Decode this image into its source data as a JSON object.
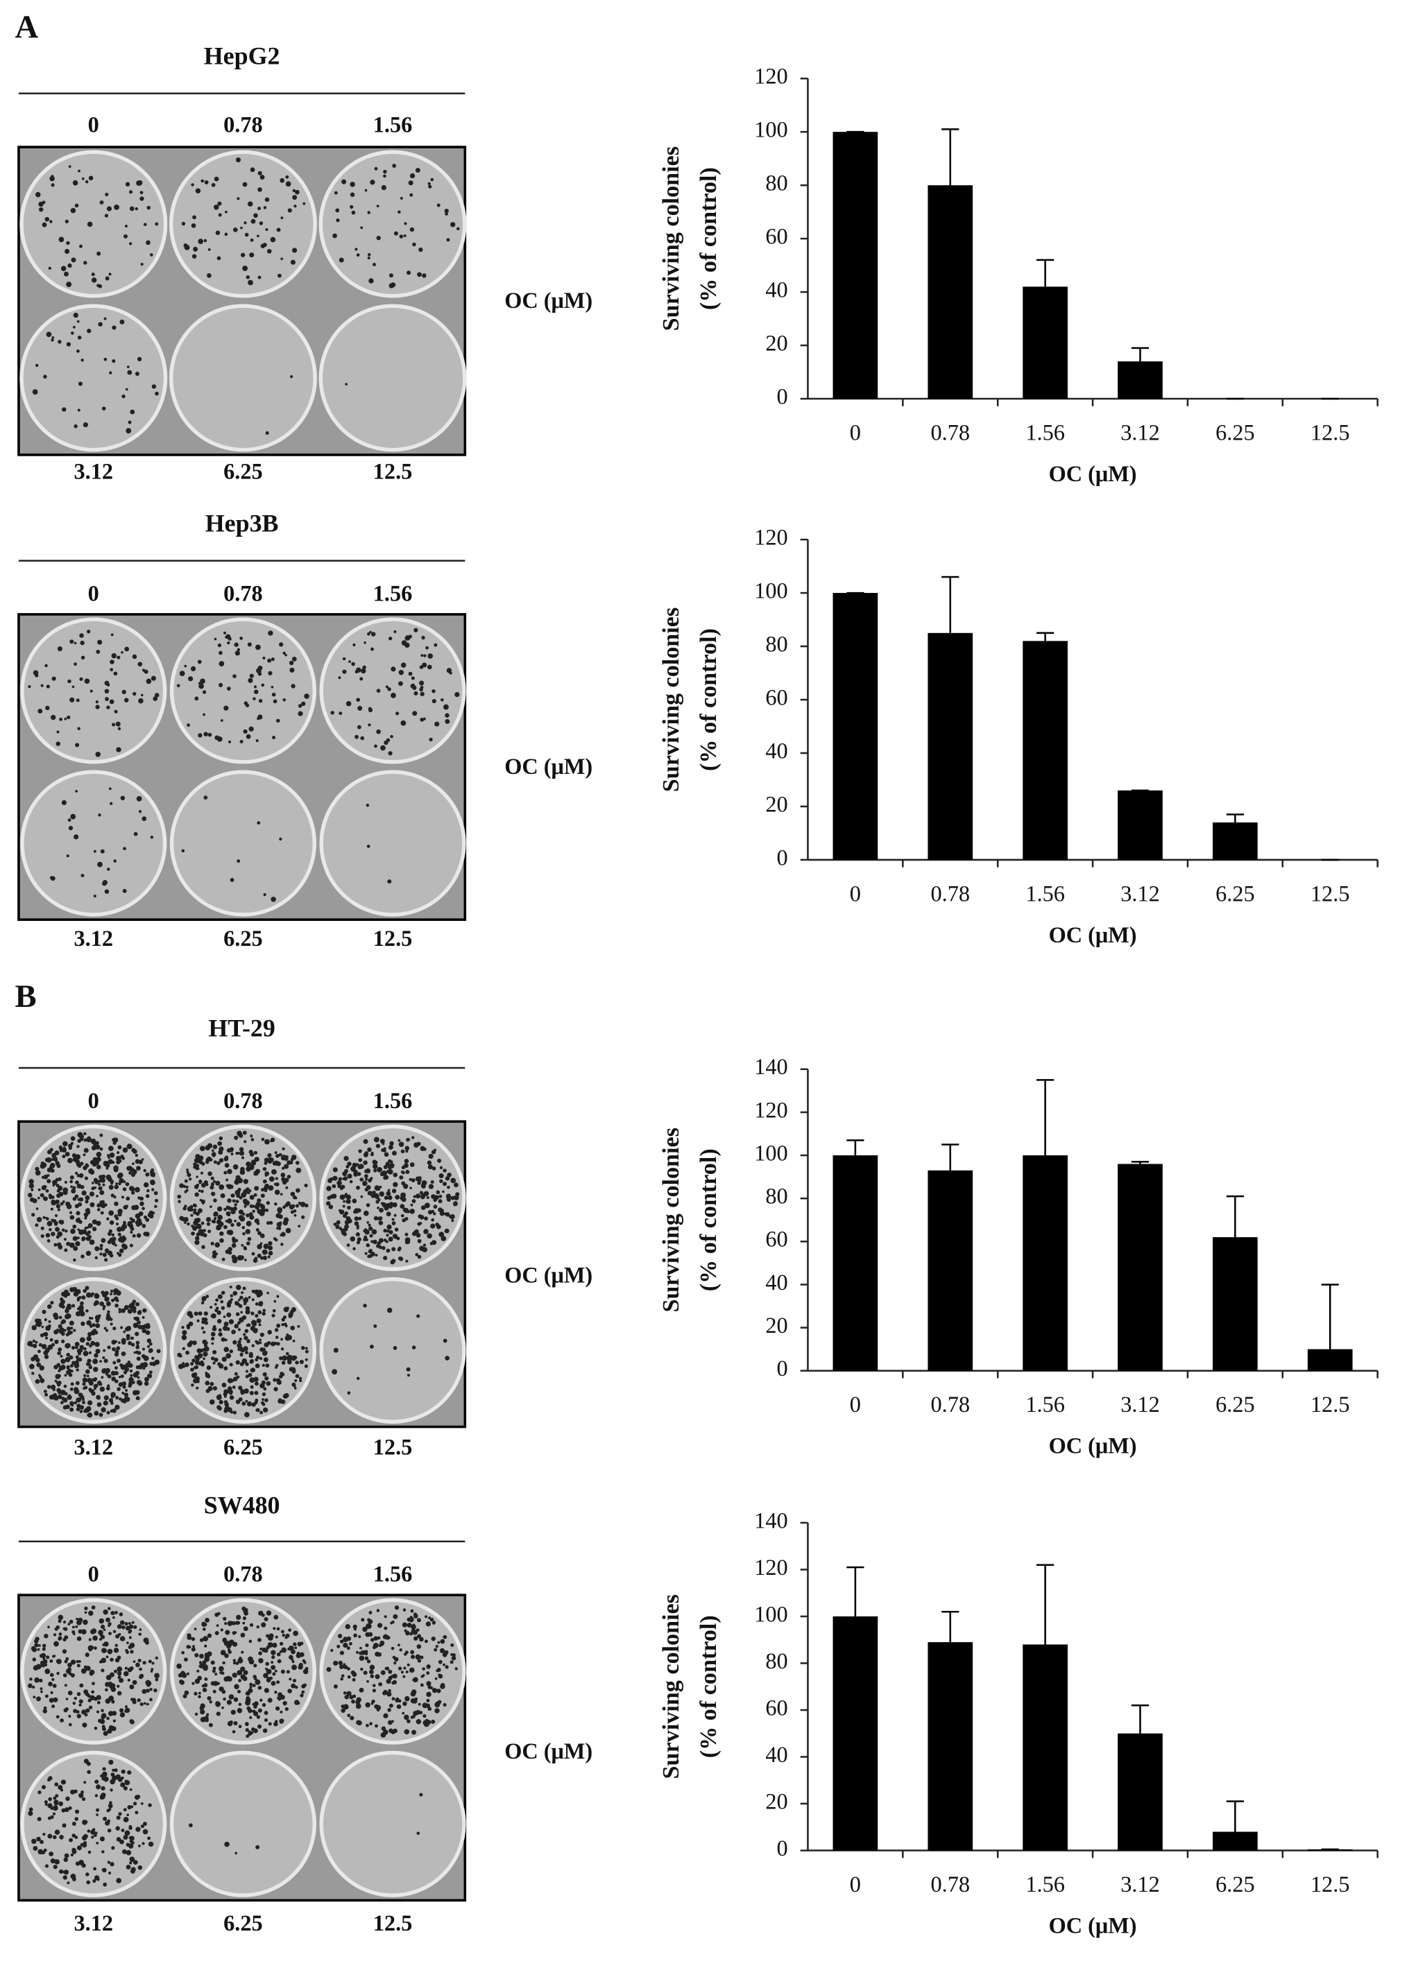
{
  "panel_labels": [
    "A",
    "B"
  ],
  "plates": [
    {
      "cell_line": "HepG2",
      "top_labels": [
        "0",
        "0.78",
        "1.56"
      ],
      "bottom_labels": [
        "3.12",
        "6.25",
        "12.5"
      ],
      "side_label": "OC (μM)"
    },
    {
      "cell_line": "Hep3B",
      "top_labels": [
        "0",
        "0.78",
        "1.56"
      ],
      "bottom_labels": [
        "3.12",
        "6.25",
        "12.5"
      ],
      "side_label": "OC (μM)"
    },
    {
      "cell_line": "HT-29",
      "top_labels": [
        "0",
        "0.78",
        "1.56"
      ],
      "bottom_labels": [
        "3.12",
        "6.25",
        "12.5"
      ],
      "side_label": "OC (μM)"
    },
    {
      "cell_line": "SW480",
      "top_labels": [
        "0",
        "0.78",
        "1.56"
      ],
      "bottom_labels": [
        "3.12",
        "6.25",
        "12.5"
      ],
      "side_label": "OC (μM)"
    }
  ],
  "chart_data": [
    {
      "type": "bar",
      "ylabel": [
        "Surviving colonies",
        "(% of control)"
      ],
      "xlabel": "OC (μM)",
      "color": "#000000",
      "categories": [
        "0",
        "0.78",
        "1.56",
        "3.12",
        "6.25",
        "12.5"
      ],
      "values": [
        100,
        80,
        42,
        14,
        0,
        0
      ],
      "errors": [
        0,
        21,
        10,
        5,
        0,
        0
      ],
      "ylim": [
        0,
        120
      ],
      "yticks": [
        0,
        20,
        40,
        60,
        80,
        100,
        120
      ]
    },
    {
      "type": "bar",
      "ylabel": [
        "Surviving colonies",
        "(% of control)"
      ],
      "xlabel": "OC (μM)",
      "color": "#000000",
      "categories": [
        "0",
        "0.78",
        "1.56",
        "3.12",
        "6.25",
        "12.5"
      ],
      "values": [
        100,
        85,
        82,
        26,
        14,
        0
      ],
      "errors": [
        0,
        21,
        3,
        0,
        3,
        0
      ],
      "ylim": [
        0,
        120
      ],
      "yticks": [
        0,
        20,
        40,
        60,
        80,
        100,
        120
      ]
    },
    {
      "type": "bar",
      "ylabel": [
        "Surviving colonies",
        "(% of control)"
      ],
      "xlabel": "OC (μM)",
      "color": "#000000",
      "categories": [
        "0",
        "0.78",
        "1.56",
        "3.12",
        "6.25",
        "12.5"
      ],
      "values": [
        100,
        93,
        100,
        96,
        62,
        10
      ],
      "errors": [
        7,
        12,
        35,
        1,
        19,
        30
      ],
      "ylim": [
        0,
        140
      ],
      "yticks": [
        0,
        20,
        40,
        60,
        80,
        100,
        120,
        140
      ]
    },
    {
      "type": "bar",
      "ylabel": [
        "Surviving colonies",
        "(% of control)"
      ],
      "xlabel": "OC (μM)",
      "color": "#000000",
      "categories": [
        "0",
        "0.78",
        "1.56",
        "3.12",
        "6.25",
        "12.5"
      ],
      "values": [
        100,
        89,
        88,
        50,
        8,
        0.5
      ],
      "errors": [
        21,
        13,
        34,
        12,
        13,
        0
      ],
      "ylim": [
        0,
        140
      ],
      "yticks": [
        0,
        20,
        40,
        60,
        80,
        100,
        120,
        140
      ]
    }
  ]
}
